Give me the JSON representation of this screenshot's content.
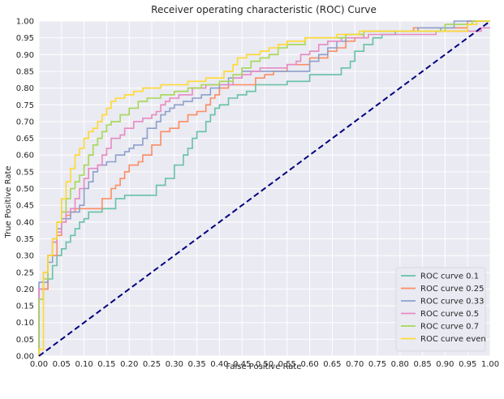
{
  "chart_data": {
    "type": "line",
    "title": "Receiver operating characteristic (ROC) Curve",
    "xlabel": "False Positive Rate",
    "ylabel": "True Positive Rate",
    "xlim": [
      0,
      1
    ],
    "ylim": [
      0,
      1
    ],
    "x_ticks": [
      "0.00",
      "0.05",
      "0.10",
      "0.15",
      "0.20",
      "0.25",
      "0.30",
      "0.35",
      "0.40",
      "0.45",
      "0.50",
      "0.55",
      "0.60",
      "0.65",
      "0.70",
      "0.75",
      "0.80",
      "0.85",
      "0.90",
      "0.95",
      "1.00"
    ],
    "y_ticks": [
      "0.00",
      "0.05",
      "0.10",
      "0.15",
      "0.20",
      "0.25",
      "0.30",
      "0.35",
      "0.40",
      "0.45",
      "0.50",
      "0.55",
      "0.60",
      "0.65",
      "0.70",
      "0.75",
      "0.80",
      "0.85",
      "0.90",
      "0.95",
      "1.00"
    ],
    "grid": true,
    "legend_position": "lower-right",
    "background": "#eaeaf2",
    "series": [
      {
        "name": "ROC curve 0.1",
        "color": "#66c2a5",
        "x": [
          0,
          0,
          0.01,
          0.01,
          0.02,
          0.02,
          0.03,
          0.03,
          0.04,
          0.04,
          0.05,
          0.05,
          0.06,
          0.06,
          0.07,
          0.07,
          0.08,
          0.08,
          0.09,
          0.09,
          0.1,
          0.1,
          0.11,
          0.11,
          0.14,
          0.14,
          0.17,
          0.17,
          0.19,
          0.19,
          0.26,
          0.26,
          0.28,
          0.28,
          0.3,
          0.3,
          0.32,
          0.32,
          0.33,
          0.33,
          0.34,
          0.34,
          0.35,
          0.35,
          0.37,
          0.37,
          0.38,
          0.38,
          0.39,
          0.39,
          0.4,
          0.4,
          0.42,
          0.42,
          0.44,
          0.44,
          0.46,
          0.46,
          0.48,
          0.48,
          0.55,
          0.55,
          0.6,
          0.6,
          0.67,
          0.67,
          0.69,
          0.69,
          0.7,
          0.7,
          0.72,
          0.72,
          0.74,
          0.74,
          0.76,
          0.76,
          0.79,
          0.79,
          0.89,
          0.89,
          0.95,
          0.95,
          1.0
        ],
        "y": [
          0,
          0.17,
          0.17,
          0.2,
          0.2,
          0.23,
          0.23,
          0.27,
          0.27,
          0.3,
          0.3,
          0.32,
          0.32,
          0.34,
          0.34,
          0.36,
          0.36,
          0.38,
          0.38,
          0.4,
          0.4,
          0.41,
          0.41,
          0.43,
          0.43,
          0.44,
          0.44,
          0.47,
          0.47,
          0.48,
          0.48,
          0.51,
          0.51,
          0.53,
          0.53,
          0.57,
          0.57,
          0.6,
          0.6,
          0.62,
          0.62,
          0.65,
          0.65,
          0.67,
          0.67,
          0.7,
          0.7,
          0.72,
          0.72,
          0.74,
          0.74,
          0.75,
          0.75,
          0.77,
          0.77,
          0.78,
          0.78,
          0.79,
          0.79,
          0.81,
          0.81,
          0.82,
          0.82,
          0.84,
          0.84,
          0.86,
          0.86,
          0.88,
          0.88,
          0.91,
          0.91,
          0.93,
          0.93,
          0.95,
          0.95,
          0.96,
          0.96,
          0.97,
          0.97,
          0.98,
          0.98,
          1.0,
          1.0
        ]
      },
      {
        "name": "ROC curve 0.25",
        "color": "#fc8d62",
        "x": [
          0,
          0,
          0.02,
          0.02,
          0.04,
          0.04,
          0.05,
          0.05,
          0.06,
          0.06,
          0.07,
          0.07,
          0.08,
          0.08,
          0.09,
          0.09,
          0.14,
          0.14,
          0.16,
          0.16,
          0.17,
          0.17,
          0.18,
          0.18,
          0.19,
          0.19,
          0.2,
          0.2,
          0.22,
          0.22,
          0.23,
          0.23,
          0.25,
          0.25,
          0.27,
          0.27,
          0.29,
          0.29,
          0.31,
          0.31,
          0.33,
          0.33,
          0.35,
          0.35,
          0.37,
          0.37,
          0.38,
          0.38,
          0.39,
          0.39,
          0.4,
          0.4,
          0.42,
          0.42,
          0.48,
          0.48,
          0.5,
          0.5,
          0.52,
          0.52,
          0.55,
          0.55,
          0.6,
          0.6,
          0.64,
          0.64,
          0.66,
          0.66,
          0.68,
          0.68,
          0.7,
          0.7,
          0.72,
          0.72,
          0.83,
          0.83,
          0.95,
          0.95,
          1.0
        ],
        "y": [
          0,
          0.2,
          0.2,
          0.3,
          0.3,
          0.36,
          0.36,
          0.4,
          0.4,
          0.42,
          0.42,
          0.43,
          0.43,
          0.44,
          0.44,
          0.44,
          0.44,
          0.47,
          0.47,
          0.5,
          0.5,
          0.51,
          0.51,
          0.53,
          0.53,
          0.55,
          0.55,
          0.57,
          0.57,
          0.58,
          0.58,
          0.6,
          0.6,
          0.63,
          0.63,
          0.67,
          0.67,
          0.68,
          0.68,
          0.7,
          0.7,
          0.72,
          0.72,
          0.73,
          0.73,
          0.75,
          0.75,
          0.77,
          0.77,
          0.78,
          0.78,
          0.8,
          0.8,
          0.81,
          0.81,
          0.83,
          0.83,
          0.84,
          0.84,
          0.85,
          0.85,
          0.87,
          0.87,
          0.89,
          0.89,
          0.91,
          0.91,
          0.92,
          0.92,
          0.94,
          0.94,
          0.95,
          0.95,
          0.97,
          0.97,
          0.98,
          0.98,
          1.0,
          1.0
        ]
      },
      {
        "name": "ROC curve 0.33",
        "color": "#8da0cb",
        "x": [
          0,
          0,
          0.02,
          0.02,
          0.03,
          0.03,
          0.04,
          0.04,
          0.05,
          0.05,
          0.06,
          0.06,
          0.07,
          0.07,
          0.09,
          0.09,
          0.1,
          0.1,
          0.11,
          0.11,
          0.12,
          0.12,
          0.13,
          0.13,
          0.15,
          0.15,
          0.17,
          0.17,
          0.19,
          0.19,
          0.2,
          0.2,
          0.21,
          0.21,
          0.23,
          0.23,
          0.24,
          0.24,
          0.26,
          0.26,
          0.27,
          0.27,
          0.28,
          0.28,
          0.29,
          0.29,
          0.3,
          0.3,
          0.32,
          0.32,
          0.34,
          0.34,
          0.36,
          0.36,
          0.38,
          0.38,
          0.4,
          0.4,
          0.42,
          0.42,
          0.45,
          0.45,
          0.6,
          0.6,
          0.62,
          0.62,
          0.64,
          0.64,
          0.66,
          0.66,
          0.68,
          0.68,
          0.72,
          0.72,
          0.84,
          0.84,
          0.92,
          0.92,
          1.0
        ],
        "y": [
          0,
          0.22,
          0.22,
          0.28,
          0.28,
          0.34,
          0.34,
          0.38,
          0.38,
          0.41,
          0.41,
          0.41,
          0.41,
          0.43,
          0.43,
          0.45,
          0.45,
          0.5,
          0.5,
          0.52,
          0.52,
          0.55,
          0.55,
          0.57,
          0.57,
          0.58,
          0.58,
          0.6,
          0.6,
          0.61,
          0.61,
          0.62,
          0.62,
          0.63,
          0.63,
          0.65,
          0.65,
          0.68,
          0.68,
          0.7,
          0.7,
          0.72,
          0.72,
          0.73,
          0.73,
          0.74,
          0.74,
          0.75,
          0.75,
          0.76,
          0.76,
          0.77,
          0.77,
          0.78,
          0.78,
          0.8,
          0.8,
          0.81,
          0.81,
          0.83,
          0.83,
          0.85,
          0.85,
          0.88,
          0.88,
          0.9,
          0.9,
          0.92,
          0.92,
          0.94,
          0.94,
          0.96,
          0.96,
          0.97,
          0.97,
          0.98,
          0.98,
          1.0,
          1.0
        ]
      },
      {
        "name": "ROC curve 0.5",
        "color": "#e78ac3",
        "x": [
          0,
          0,
          0.01,
          0.01,
          0.02,
          0.02,
          0.03,
          0.03,
          0.04,
          0.04,
          0.05,
          0.05,
          0.06,
          0.06,
          0.07,
          0.07,
          0.08,
          0.08,
          0.09,
          0.09,
          0.1,
          0.1,
          0.11,
          0.11,
          0.13,
          0.13,
          0.14,
          0.14,
          0.15,
          0.15,
          0.16,
          0.16,
          0.18,
          0.18,
          0.19,
          0.19,
          0.21,
          0.21,
          0.23,
          0.23,
          0.25,
          0.25,
          0.26,
          0.26,
          0.27,
          0.27,
          0.28,
          0.28,
          0.29,
          0.29,
          0.31,
          0.31,
          0.34,
          0.34,
          0.37,
          0.37,
          0.43,
          0.43,
          0.45,
          0.45,
          0.47,
          0.47,
          0.49,
          0.49,
          0.55,
          0.55,
          0.57,
          0.57,
          0.58,
          0.58,
          0.6,
          0.6,
          0.62,
          0.62,
          0.64,
          0.64,
          0.67,
          0.67,
          0.73,
          0.73,
          0.88,
          0.88,
          0.98,
          0.98,
          1.0
        ],
        "y": [
          0,
          0.2,
          0.2,
          0.25,
          0.25,
          0.3,
          0.3,
          0.34,
          0.34,
          0.37,
          0.37,
          0.4,
          0.4,
          0.43,
          0.43,
          0.44,
          0.44,
          0.47,
          0.47,
          0.5,
          0.5,
          0.53,
          0.53,
          0.56,
          0.56,
          0.57,
          0.57,
          0.6,
          0.6,
          0.62,
          0.62,
          0.65,
          0.65,
          0.66,
          0.66,
          0.68,
          0.68,
          0.7,
          0.7,
          0.71,
          0.71,
          0.72,
          0.72,
          0.73,
          0.73,
          0.75,
          0.75,
          0.76,
          0.76,
          0.77,
          0.77,
          0.78,
          0.78,
          0.8,
          0.8,
          0.81,
          0.81,
          0.83,
          0.83,
          0.84,
          0.84,
          0.85,
          0.85,
          0.86,
          0.86,
          0.87,
          0.87,
          0.88,
          0.88,
          0.9,
          0.9,
          0.91,
          0.91,
          0.93,
          0.93,
          0.94,
          0.94,
          0.95,
          0.95,
          0.96,
          0.96,
          0.97,
          0.97,
          0.98,
          0.98
        ]
      },
      {
        "name": "ROC curve 0.7",
        "color": "#a6d854",
        "x": [
          0,
          0,
          0.01,
          0.01,
          0.02,
          0.02,
          0.03,
          0.03,
          0.04,
          0.04,
          0.05,
          0.05,
          0.06,
          0.06,
          0.07,
          0.07,
          0.08,
          0.08,
          0.09,
          0.09,
          0.1,
          0.1,
          0.11,
          0.11,
          0.12,
          0.12,
          0.13,
          0.13,
          0.14,
          0.14,
          0.15,
          0.15,
          0.16,
          0.16,
          0.18,
          0.18,
          0.2,
          0.2,
          0.22,
          0.22,
          0.24,
          0.24,
          0.27,
          0.27,
          0.3,
          0.3,
          0.33,
          0.33,
          0.36,
          0.36,
          0.4,
          0.4,
          0.43,
          0.43,
          0.45,
          0.45,
          0.47,
          0.47,
          0.49,
          0.49,
          0.51,
          0.51,
          0.53,
          0.53,
          0.55,
          0.55,
          0.59,
          0.59,
          0.68,
          0.68,
          0.72,
          0.72,
          0.9,
          0.9,
          0.96,
          0.96,
          1.0
        ],
        "y": [
          0,
          0.17,
          0.17,
          0.23,
          0.23,
          0.3,
          0.3,
          0.35,
          0.35,
          0.4,
          0.4,
          0.43,
          0.43,
          0.47,
          0.47,
          0.5,
          0.5,
          0.52,
          0.52,
          0.54,
          0.54,
          0.57,
          0.57,
          0.6,
          0.6,
          0.63,
          0.63,
          0.65,
          0.65,
          0.67,
          0.67,
          0.69,
          0.69,
          0.7,
          0.7,
          0.72,
          0.72,
          0.74,
          0.74,
          0.76,
          0.76,
          0.77,
          0.77,
          0.78,
          0.78,
          0.79,
          0.79,
          0.8,
          0.8,
          0.81,
          0.81,
          0.82,
          0.82,
          0.84,
          0.84,
          0.86,
          0.86,
          0.88,
          0.88,
          0.89,
          0.89,
          0.9,
          0.9,
          0.92,
          0.92,
          0.93,
          0.93,
          0.95,
          0.95,
          0.96,
          0.96,
          0.97,
          0.97,
          0.99,
          0.99,
          1.0,
          1.0
        ]
      },
      {
        "name": "ROC curve even",
        "color": "#ffd92f",
        "x": [
          0,
          0,
          0.01,
          0.01,
          0.02,
          0.02,
          0.03,
          0.03,
          0.04,
          0.04,
          0.05,
          0.05,
          0.06,
          0.06,
          0.07,
          0.07,
          0.08,
          0.08,
          0.09,
          0.09,
          0.1,
          0.1,
          0.11,
          0.11,
          0.12,
          0.12,
          0.13,
          0.13,
          0.14,
          0.14,
          0.15,
          0.15,
          0.16,
          0.16,
          0.17,
          0.17,
          0.19,
          0.19,
          0.21,
          0.21,
          0.23,
          0.23,
          0.27,
          0.27,
          0.33,
          0.33,
          0.37,
          0.37,
          0.41,
          0.41,
          0.43,
          0.43,
          0.44,
          0.44,
          0.46,
          0.46,
          0.49,
          0.49,
          0.51,
          0.51,
          0.53,
          0.53,
          0.55,
          0.55,
          0.59,
          0.59,
          0.66,
          0.66,
          0.71,
          0.71,
          0.95,
          0.95,
          0.97,
          0.97,
          1.0
        ],
        "y": [
          0,
          0.02,
          0.02,
          0.25,
          0.25,
          0.3,
          0.3,
          0.35,
          0.35,
          0.4,
          0.4,
          0.47,
          0.47,
          0.52,
          0.52,
          0.56,
          0.56,
          0.6,
          0.6,
          0.62,
          0.62,
          0.65,
          0.65,
          0.67,
          0.67,
          0.68,
          0.68,
          0.7,
          0.7,
          0.72,
          0.72,
          0.74,
          0.74,
          0.76,
          0.76,
          0.77,
          0.77,
          0.78,
          0.78,
          0.79,
          0.79,
          0.8,
          0.8,
          0.81,
          0.81,
          0.82,
          0.82,
          0.83,
          0.83,
          0.85,
          0.85,
          0.87,
          0.87,
          0.89,
          0.89,
          0.9,
          0.9,
          0.91,
          0.91,
          0.92,
          0.92,
          0.93,
          0.93,
          0.94,
          0.94,
          0.95,
          0.95,
          0.96,
          0.96,
          0.97,
          0.97,
          0.99,
          0.99,
          1.0,
          1.0
        ]
      }
    ],
    "reference_line": {
      "x": [
        0,
        1
      ],
      "y": [
        0,
        1
      ],
      "color": "#000080",
      "style": "dashed"
    }
  }
}
